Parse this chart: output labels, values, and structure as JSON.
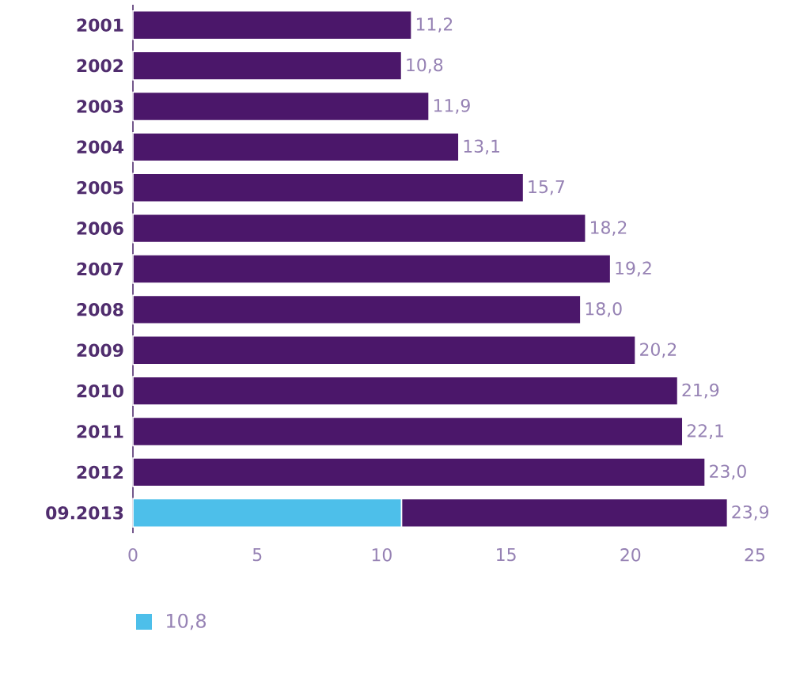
{
  "chart_data": {
    "type": "bar",
    "orientation": "horizontal",
    "stacked": true,
    "categories": [
      "2001",
      "2002",
      "2003",
      "2004",
      "2005",
      "2006",
      "2007",
      "2008",
      "2009",
      "2010",
      "2011",
      "2012",
      "09.2013"
    ],
    "series": [
      {
        "color": "#4dbfea",
        "values": [
          null,
          null,
          null,
          null,
          null,
          null,
          null,
          null,
          null,
          null,
          null,
          null,
          10.8
        ]
      },
      {
        "color": "#4b176a",
        "values": [
          11.2,
          10.8,
          11.9,
          13.1,
          15.7,
          18.2,
          19.2,
          18.0,
          20.2,
          21.9,
          22.1,
          23.0,
          13.1
        ]
      }
    ],
    "totals": [
      "11,2",
      "10,8",
      "11,9",
      "13,1",
      "15,7",
      "18,2",
      "19,2",
      "18,0",
      "20,2",
      "21,9",
      "22,1",
      "23,0",
      "23,9"
    ],
    "xlim": [
      0,
      25
    ],
    "xticks": [
      0,
      5,
      10,
      15,
      20,
      25
    ],
    "annotations": [
      "10,8"
    ]
  }
}
